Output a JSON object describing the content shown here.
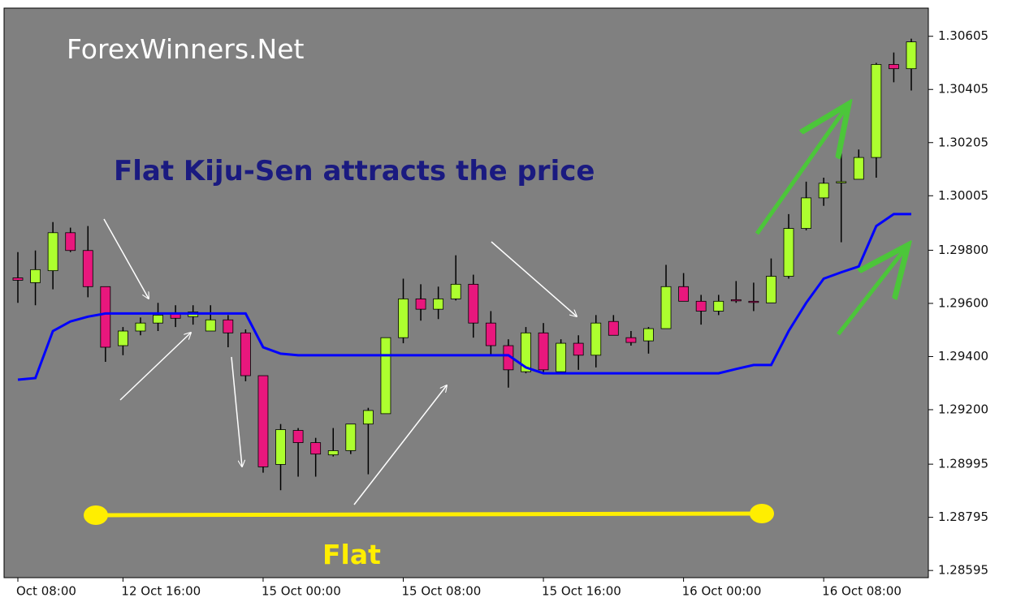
{
  "chart_data": {
    "type": "candlestick",
    "title": "ForexWinners.Net",
    "annotations": [
      "Flat Kiju-Sen attracts the price",
      "Flat"
    ],
    "categories": [
      "Oct 08:00",
      null,
      null,
      null,
      null,
      null,
      "12 Oct 16:00",
      null,
      null,
      null,
      null,
      null,
      null,
      null,
      "15 Oct 00:00",
      null,
      null,
      null,
      null,
      null,
      null,
      null,
      "15 Oct 08:00",
      null,
      null,
      null,
      null,
      null,
      null,
      null,
      "15 Oct 16:00",
      null,
      null,
      null,
      null,
      null,
      null,
      null,
      "16 Oct 00:00",
      null,
      null,
      null,
      null,
      null,
      null,
      null,
      "16 Oct 08:00",
      null,
      null,
      null,
      null,
      null
    ],
    "open": [
      1.29696,
      1.29678,
      1.29723,
      1.29866,
      1.29799,
      1.29663,
      1.29441,
      1.29496,
      1.29526,
      1.29562,
      1.2955,
      1.29496,
      1.29538,
      1.29489,
      1.29328,
      1.28994,
      1.29122,
      1.29076,
      1.2903,
      1.29046,
      1.29146,
      1.29185,
      1.29471,
      1.29617,
      1.29578,
      1.29617,
      1.29672,
      1.29526,
      1.29441,
      1.29343,
      1.29489,
      1.29343,
      1.2945,
      1.29405,
      1.29532,
      1.29471,
      1.29459,
      1.29505,
      1.29663,
      1.29608,
      1.29571,
      1.29614,
      1.29608,
      1.29602,
      1.29702,
      1.29882,
      1.29997,
      1.30055,
      1.30067,
      1.30149,
      1.30499,
      1.30483
    ],
    "high": [
      1.29793,
      1.29799,
      1.29906,
      1.29885,
      1.29891,
      1.29663,
      1.29511,
      1.29547,
      1.29602,
      1.29593,
      1.29593,
      1.29593,
      1.29556,
      1.29502,
      1.29328,
      1.29146,
      1.29131,
      1.29094,
      1.29131,
      1.29146,
      1.29207,
      1.29471,
      1.29693,
      1.29672,
      1.29663,
      1.29781,
      1.29708,
      1.29571,
      1.29465,
      1.29511,
      1.29526,
      1.29465,
      1.2948,
      1.29556,
      1.29556,
      1.29496,
      1.29511,
      1.29745,
      1.29714,
      1.29632,
      1.29632,
      1.29684,
      1.29678,
      1.29769,
      1.29936,
      1.30058,
      1.30073,
      1.30179,
      1.30179,
      1.30505,
      1.30544,
      1.30596
    ],
    "low": [
      1.29602,
      1.29593,
      1.29653,
      1.29793,
      1.29623,
      1.2938,
      1.29405,
      1.2948,
      1.29496,
      1.29511,
      1.2952,
      1.29496,
      1.29435,
      1.29307,
      1.28963,
      1.28897,
      1.28948,
      1.28948,
      1.29024,
      1.29033,
      1.28957,
      1.29185,
      1.2945,
      1.29535,
      1.29541,
      1.29611,
      1.29471,
      1.29405,
      1.29283,
      1.29337,
      1.29337,
      1.29337,
      1.2935,
      1.29359,
      1.2948,
      1.29441,
      1.29411,
      1.29505,
      1.29608,
      1.2952,
      1.29556,
      1.29602,
      1.29571,
      1.29602,
      1.29693,
      1.29875,
      1.29967,
      1.2983,
      1.30067,
      1.30073,
      1.30432,
      1.30401
    ],
    "close": [
      1.29687,
      1.29727,
      1.29866,
      1.29799,
      1.29663,
      1.29435,
      1.29496,
      1.29526,
      1.29556,
      1.29544,
      1.29568,
      1.29538,
      1.29489,
      1.29328,
      1.28985,
      1.29125,
      1.29076,
      1.29033,
      1.29046,
      1.29146,
      1.29197,
      1.29471,
      1.29617,
      1.29578,
      1.29617,
      1.29672,
      1.29526,
      1.29441,
      1.2935,
      1.29489,
      1.2935,
      1.2945,
      1.29405,
      1.29526,
      1.2948,
      1.29453,
      1.29505,
      1.29663,
      1.29608,
      1.29571,
      1.29608,
      1.29611,
      1.29605,
      1.29702,
      1.29882,
      1.29997,
      1.30052,
      1.30058,
      1.30149,
      1.30499,
      1.30483,
      1.30584
    ],
    "up_color": "#adff2f",
    "down_color": "#e8177d",
    "wick_color": "#000000",
    "kijun": {
      "color": "#0000ff",
      "values": [
        1.29313,
        1.29319,
        1.29496,
        1.29532,
        1.2955,
        1.29562,
        1.29562,
        1.29562,
        1.29562,
        1.29562,
        1.29562,
        1.29562,
        1.29562,
        1.29562,
        1.29435,
        1.29411,
        1.29405,
        1.29405,
        1.29405,
        1.29405,
        1.29405,
        1.29405,
        1.29405,
        1.29405,
        1.29405,
        1.29405,
        1.29405,
        1.29405,
        1.29405,
        1.29359,
        1.29337,
        1.29337,
        1.29337,
        1.29337,
        1.29337,
        1.29337,
        1.29337,
        1.29337,
        1.29337,
        1.29337,
        1.29337,
        1.29353,
        1.29368,
        1.29368,
        1.29496,
        1.29602,
        1.29693,
        1.29717,
        1.29739,
        1.29891,
        1.29936,
        1.29936
      ]
    },
    "ylim": [
      1.28568,
      1.30711
    ],
    "yticks": [
      1.30605,
      1.30405,
      1.30205,
      1.30005,
      {
        "value": 1.298,
        "label": "1.29800"
      },
      {
        "value": 1.296,
        "label": "1.29600"
      },
      {
        "value": 1.294,
        "label": "1.29400"
      },
      {
        "value": 1.292,
        "label": "1.29200"
      },
      1.28995,
      1.28795,
      1.28595
    ],
    "grid": false,
    "background": "#808080"
  }
}
